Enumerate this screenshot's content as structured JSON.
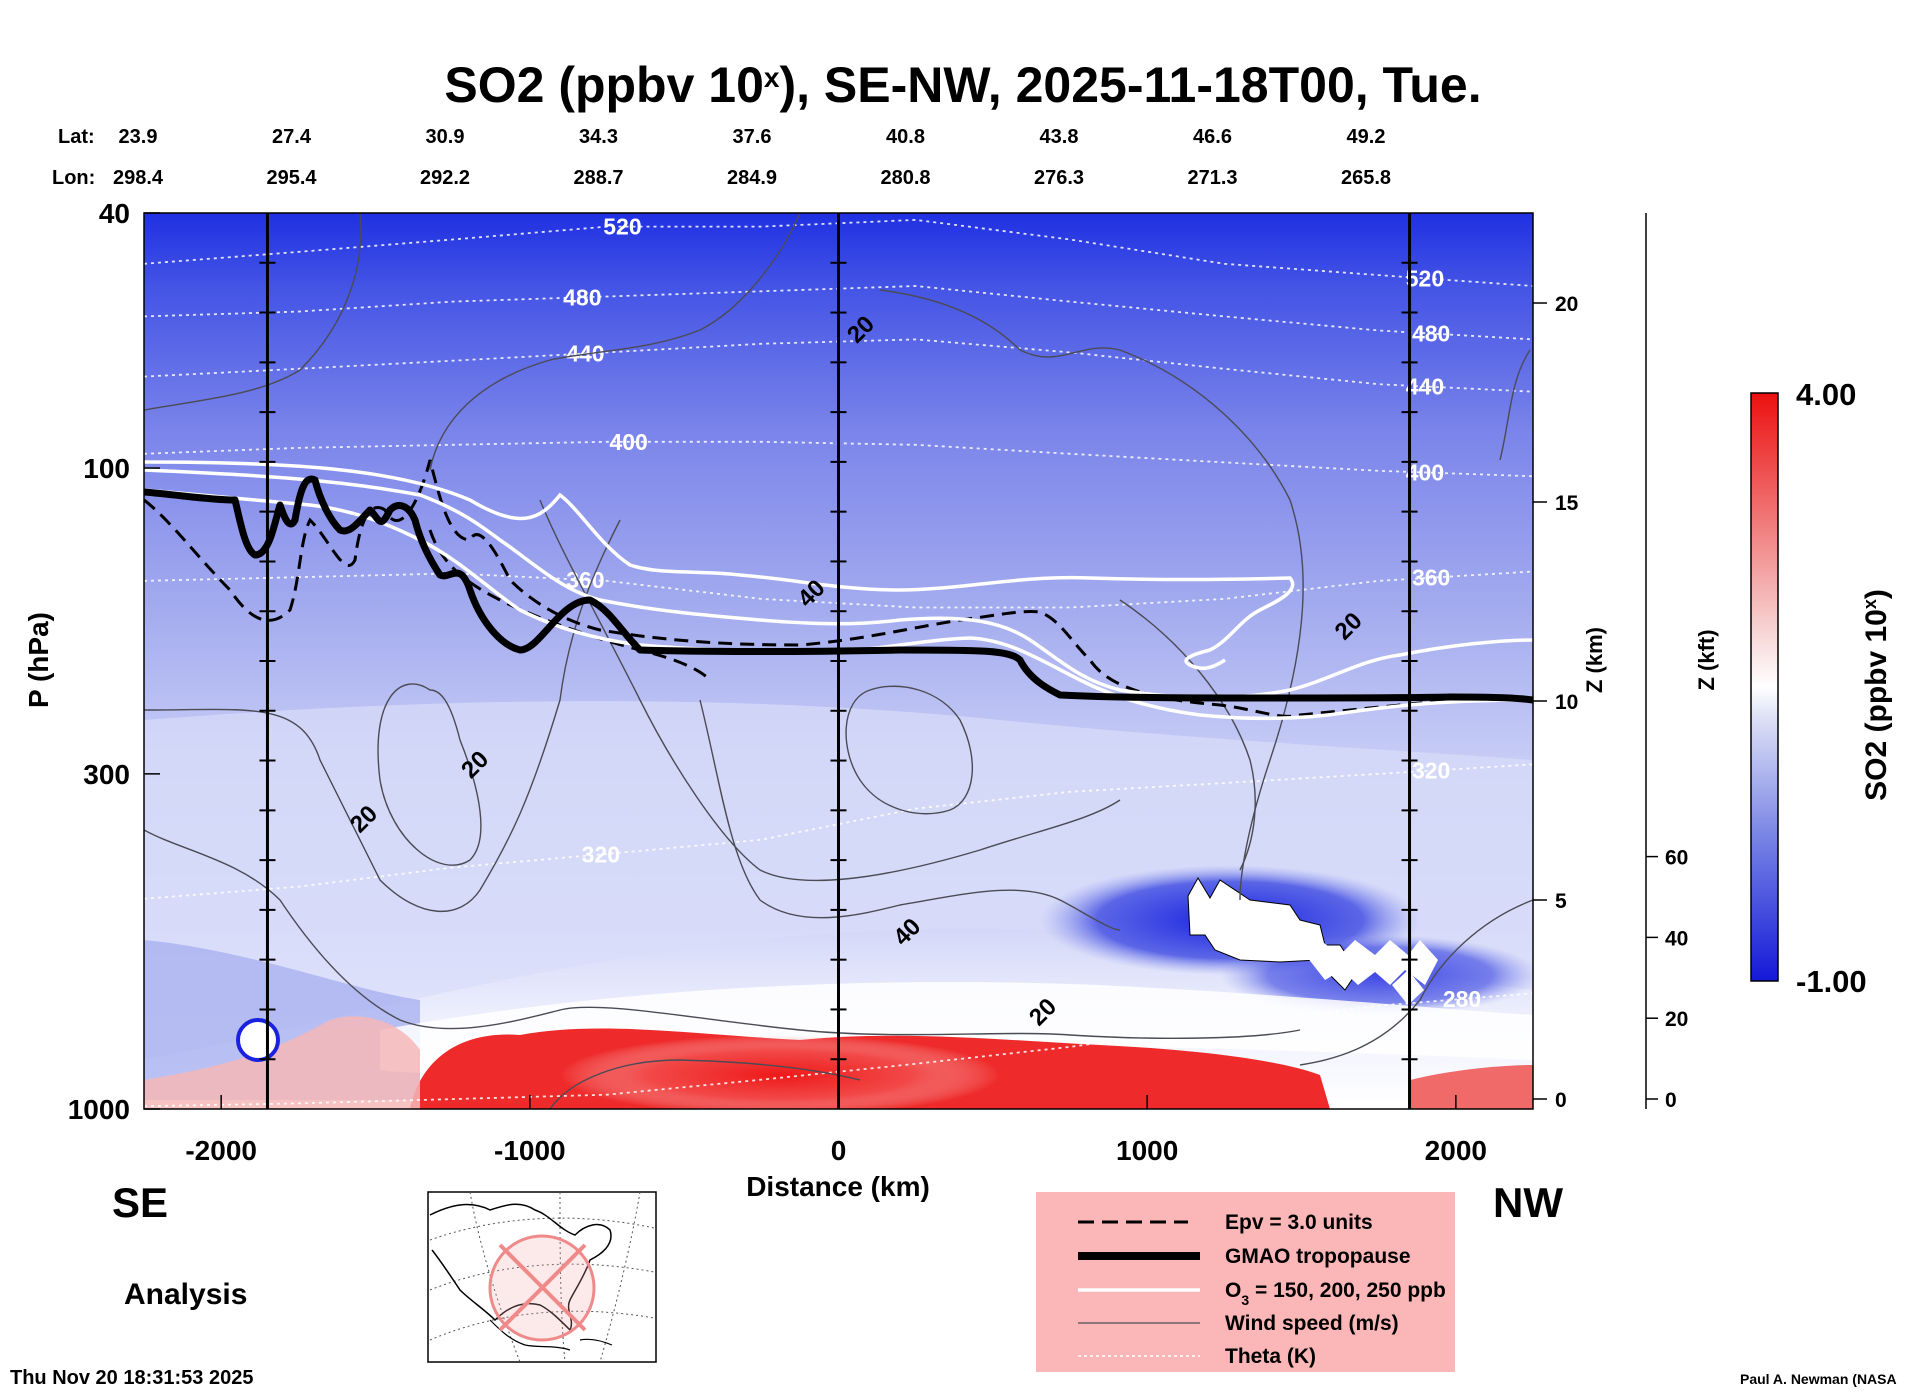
{
  "chart_data": {
    "type": "heatmap",
    "title": "SO2 (ppbv 10",
    "title_sup": "x",
    "title_rest": "), SE-NW, 2025-11-18T00, Tue.",
    "xlabel": "Distance (km)",
    "ylabel": "P (hPa)",
    "y2label": "Z (km)",
    "y3label": "Z (kft)",
    "colorbar_label": "SO2 (ppbv 10",
    "colorbar_label_sup": "x",
    "colorbar_label_rest": ")",
    "colorbar_max_label": "4.00",
    "colorbar_min_label": "-1.00",
    "colorbar_range": [
      -1.0,
      4.0
    ],
    "xlim": [
      -2250,
      2250
    ],
    "ylim": [
      1000,
      40
    ],
    "y_scale": "log",
    "x_ticks": [
      -2000,
      -1000,
      0,
      1000,
      2000
    ],
    "p_ticks": [
      40,
      100,
      300,
      1000
    ],
    "zkm_ticks": [
      0,
      5,
      10,
      15,
      20
    ],
    "zkft_ticks": [
      0,
      20,
      40,
      60
    ],
    "lat_label": "Lat:",
    "lon_label": "Lon:",
    "lat_values": [
      "23.9",
      "27.4",
      "30.9",
      "34.3",
      "37.6",
      "40.8",
      "43.8",
      "46.6",
      "49.2"
    ],
    "lon_values": [
      "298.4",
      "295.4",
      "292.2",
      "288.7",
      "284.9",
      "280.8",
      "276.3",
      "271.3",
      "265.8"
    ],
    "latlon_distances": [
      -2250,
      -1750,
      -1250,
      -750,
      -250,
      250,
      750,
      1250,
      1750
    ],
    "vertical_lines_km": [
      -1850,
      0,
      1850
    ],
    "theta_lines": [
      {
        "label": "520",
        "pressures": [
          48,
          46,
          44,
          42,
          42,
          41,
          44,
          48,
          50,
          52
        ],
        "label_x": -700,
        "label_x2": 1900
      },
      {
        "label": "480",
        "pressures": [
          58,
          57,
          55,
          54,
          53,
          52,
          55,
          58,
          61,
          63
        ],
        "label_x": -830,
        "label_x2": 1920
      },
      {
        "label": "440",
        "pressures": [
          72,
          70,
          68,
          66,
          64,
          63,
          66,
          70,
          74,
          76
        ],
        "label_x": -820,
        "label_x2": 1900
      },
      {
        "label": "400",
        "pressures": [
          95,
          93,
          92,
          91,
          91,
          92,
          95,
          98,
          101,
          103
        ],
        "label_x": -680,
        "label_x2": 1900
      },
      {
        "label": "360",
        "pressures": [
          150,
          148,
          146,
          150,
          160,
          165,
          165,
          160,
          150,
          145
        ],
        "label_x": -820,
        "label_x2": 1920
      },
      {
        "label": "320",
        "pressures": [
          470,
          450,
          420,
          400,
          380,
          340,
          320,
          310,
          300,
          290
        ],
        "label_x": -770,
        "label_x2": 1920
      },
      {
        "label": "280",
        "pressures": [
          990,
          980,
          965,
          950,
          900,
          850,
          800,
          740,
          690,
          660
        ],
        "label_x": 2020,
        "label_x2": null
      }
    ],
    "isotach_labels": [
      {
        "label": "20",
        "x": 90,
        "p": 62
      },
      {
        "label": "40",
        "x": -70,
        "p": 160
      },
      {
        "label": "20",
        "x": 1670,
        "p": 180
      },
      {
        "label": "20",
        "x": -1160,
        "p": 296
      },
      {
        "label": "20",
        "x": -1520,
        "p": 360
      },
      {
        "label": "40",
        "x": 240,
        "p": 540
      },
      {
        "label": "20",
        "x": 680,
        "p": 720
      }
    ],
    "legend": {
      "entries": [
        "Epv = 3.0 units",
        "GMAO tropopause",
        "O",
        "Wind speed (m/s)",
        "Theta (K)"
      ],
      "o3_sub": "3",
      "o3_rest": " = 150, 200, 250 ppb"
    },
    "direction_left": "SE",
    "direction_right": "NW",
    "analysis_label": "Analysis",
    "timestamp": "Thu Nov 20 18:31:53 2025",
    "credit": "Paul A. Newman (NASA",
    "colors": {
      "high": "#f01c1c",
      "mid": "#ffffff",
      "low": "#1a22e0",
      "legend_bg": "#fbb7b7",
      "tropopause": "#000000",
      "ozone": "#ffffff"
    }
  }
}
